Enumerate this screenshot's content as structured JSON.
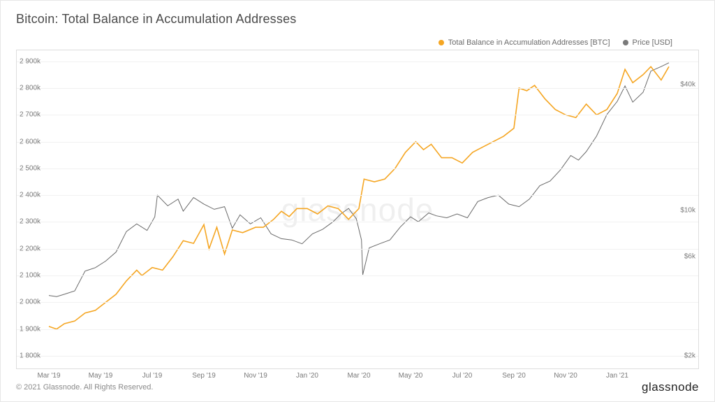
{
  "title": "Bitcoin: Total Balance in Accumulation Addresses",
  "watermark": "glassnode",
  "copyright": "© 2021 Glassnode. All Rights Reserved.",
  "brand": "glassnode",
  "legend": {
    "series1": {
      "label": "Total Balance in Accumulation Addresses [BTC]",
      "color": "#f5a623"
    },
    "series2": {
      "label": "Price [USD]",
      "color": "#7a7a7a"
    }
  },
  "chart": {
    "type": "line",
    "background_color": "#ffffff",
    "grid_color": "#f1f1f1",
    "border_color": "#dddddd",
    "label_color": "#7a7a7a",
    "label_fontsize": 10,
    "x": {
      "ticks": [
        "Mar '19",
        "May '19",
        "Jul '19",
        "Sep '19",
        "Nov '19",
        "Jan '20",
        "Mar '20",
        "May '20",
        "Jul '20",
        "Sep '20",
        "Nov '20",
        "Jan '21"
      ],
      "range": [
        0,
        24
      ]
    },
    "y_left": {
      "scale": "linear",
      "min": 1800,
      "max": 2920,
      "ticks": [
        1800,
        1900,
        2000,
        2100,
        2200,
        2300,
        2400,
        2500,
        2600,
        2700,
        2800,
        2900
      ],
      "tick_labels": [
        "1 800k",
        "1 900k",
        "2 000k",
        "2 100k",
        "2 200k",
        "2 300k",
        "2 400k",
        "2 500k",
        "2 600k",
        "2 700k",
        "2 800k",
        "2 900k"
      ]
    },
    "y_right": {
      "scale": "log",
      "min": 2000,
      "max": 55000,
      "ticks": [
        2000,
        6000,
        10000,
        40000
      ],
      "tick_labels": [
        "$2k",
        "$6k",
        "$10k",
        "$40k"
      ]
    },
    "series": {
      "balance": {
        "color": "#f5a623",
        "line_width": 1.6,
        "axis": "left",
        "data": [
          [
            0,
            1910
          ],
          [
            0.3,
            1900
          ],
          [
            0.6,
            1920
          ],
          [
            1,
            1930
          ],
          [
            1.4,
            1960
          ],
          [
            1.8,
            1970
          ],
          [
            2.2,
            2000
          ],
          [
            2.6,
            2030
          ],
          [
            3,
            2080
          ],
          [
            3.4,
            2120
          ],
          [
            3.6,
            2100
          ],
          [
            4,
            2130
          ],
          [
            4.4,
            2120
          ],
          [
            4.8,
            2170
          ],
          [
            5.2,
            2230
          ],
          [
            5.6,
            2220
          ],
          [
            6,
            2290
          ],
          [
            6.2,
            2200
          ],
          [
            6.5,
            2280
          ],
          [
            6.8,
            2180
          ],
          [
            7.1,
            2270
          ],
          [
            7.5,
            2260
          ],
          [
            8,
            2280
          ],
          [
            8.3,
            2280
          ],
          [
            8.7,
            2310
          ],
          [
            9,
            2340
          ],
          [
            9.3,
            2320
          ],
          [
            9.6,
            2350
          ],
          [
            10,
            2350
          ],
          [
            10.4,
            2330
          ],
          [
            10.8,
            2360
          ],
          [
            11.2,
            2350
          ],
          [
            11.6,
            2310
          ],
          [
            12,
            2350
          ],
          [
            12.2,
            2460
          ],
          [
            12.6,
            2450
          ],
          [
            13,
            2460
          ],
          [
            13.4,
            2500
          ],
          [
            13.8,
            2560
          ],
          [
            14.2,
            2600
          ],
          [
            14.5,
            2570
          ],
          [
            14.8,
            2590
          ],
          [
            15.2,
            2540
          ],
          [
            15.6,
            2540
          ],
          [
            16,
            2520
          ],
          [
            16.4,
            2560
          ],
          [
            16.8,
            2580
          ],
          [
            17.2,
            2600
          ],
          [
            17.6,
            2620
          ],
          [
            18,
            2650
          ],
          [
            18.2,
            2800
          ],
          [
            18.5,
            2790
          ],
          [
            18.8,
            2810
          ],
          [
            19.2,
            2760
          ],
          [
            19.6,
            2720
          ],
          [
            20,
            2700
          ],
          [
            20.4,
            2690
          ],
          [
            20.8,
            2740
          ],
          [
            21.2,
            2700
          ],
          [
            21.6,
            2720
          ],
          [
            22,
            2780
          ],
          [
            22.3,
            2870
          ],
          [
            22.6,
            2820
          ],
          [
            23,
            2850
          ],
          [
            23.3,
            2880
          ],
          [
            23.7,
            2830
          ],
          [
            24,
            2880
          ]
        ]
      },
      "price": {
        "color": "#6a6a6a",
        "line_width": 1.0,
        "axis": "right",
        "data": [
          [
            0,
            3900
          ],
          [
            0.3,
            3850
          ],
          [
            0.6,
            3950
          ],
          [
            1,
            4100
          ],
          [
            1.4,
            5100
          ],
          [
            1.8,
            5300
          ],
          [
            2.2,
            5700
          ],
          [
            2.6,
            6300
          ],
          [
            3,
            7900
          ],
          [
            3.4,
            8600
          ],
          [
            3.8,
            8000
          ],
          [
            4.1,
            9300
          ],
          [
            4.2,
            11800
          ],
          [
            4.6,
            10500
          ],
          [
            5,
            11300
          ],
          [
            5.2,
            9900
          ],
          [
            5.6,
            11500
          ],
          [
            6,
            10700
          ],
          [
            6.4,
            10100
          ],
          [
            6.8,
            10400
          ],
          [
            7.1,
            8200
          ],
          [
            7.4,
            9500
          ],
          [
            7.8,
            8600
          ],
          [
            8.2,
            9200
          ],
          [
            8.6,
            7700
          ],
          [
            9,
            7300
          ],
          [
            9.4,
            7200
          ],
          [
            9.8,
            6900
          ],
          [
            10.2,
            7700
          ],
          [
            10.6,
            8100
          ],
          [
            11,
            8800
          ],
          [
            11.3,
            9600
          ],
          [
            11.6,
            10200
          ],
          [
            11.9,
            9100
          ],
          [
            12.1,
            7200
          ],
          [
            12.15,
            4900
          ],
          [
            12.4,
            6600
          ],
          [
            12.8,
            6900
          ],
          [
            13.2,
            7200
          ],
          [
            13.6,
            8300
          ],
          [
            14,
            9300
          ],
          [
            14.3,
            8800
          ],
          [
            14.7,
            9700
          ],
          [
            15,
            9400
          ],
          [
            15.4,
            9200
          ],
          [
            15.8,
            9600
          ],
          [
            16.2,
            9200
          ],
          [
            16.6,
            11000
          ],
          [
            17,
            11500
          ],
          [
            17.4,
            11800
          ],
          [
            17.8,
            10700
          ],
          [
            18.2,
            10400
          ],
          [
            18.6,
            11300
          ],
          [
            19,
            13100
          ],
          [
            19.4,
            13800
          ],
          [
            19.8,
            15600
          ],
          [
            20.2,
            18300
          ],
          [
            20.5,
            17400
          ],
          [
            20.8,
            19100
          ],
          [
            21.2,
            22700
          ],
          [
            21.6,
            28800
          ],
          [
            22,
            33300
          ],
          [
            22.3,
            39500
          ],
          [
            22.6,
            33000
          ],
          [
            23,
            36800
          ],
          [
            23.3,
            46500
          ],
          [
            23.7,
            48900
          ],
          [
            24,
            51000
          ]
        ]
      }
    }
  }
}
